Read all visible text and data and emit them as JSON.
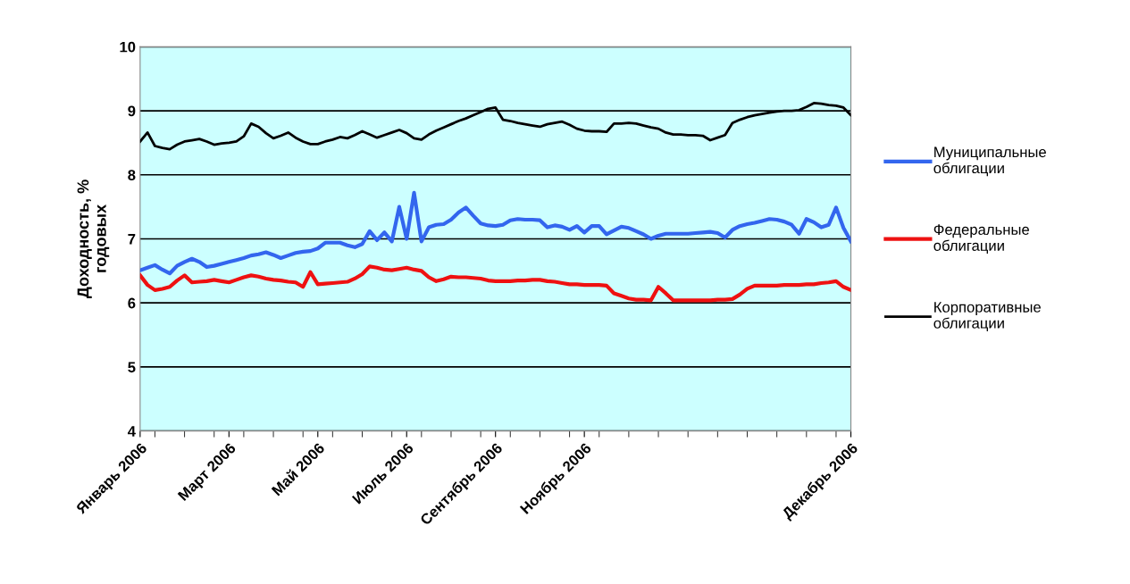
{
  "chart_data": {
    "type": "line",
    "ylabel": "Доходность, %\nгодовых",
    "ylim": [
      4,
      10
    ],
    "yticks": [
      4,
      5,
      6,
      7,
      8,
      9,
      10
    ],
    "categories": [
      "Январь 2006",
      null,
      null,
      null,
      null,
      null,
      null,
      null,
      null,
      null,
      null,
      null,
      "Март 2006",
      null,
      null,
      null,
      null,
      null,
      null,
      null,
      null,
      null,
      null,
      null,
      "Май 2006",
      null,
      null,
      null,
      null,
      null,
      null,
      null,
      null,
      null,
      null,
      null,
      "Июль 2006",
      null,
      null,
      null,
      null,
      null,
      null,
      null,
      null,
      null,
      null,
      null,
      "Сентябрь 2006",
      null,
      null,
      null,
      null,
      null,
      null,
      null,
      null,
      null,
      null,
      null,
      "Ноябрь 2006",
      null,
      null,
      null,
      null,
      null,
      null,
      null,
      null,
      null,
      null,
      null,
      null,
      null,
      null,
      null,
      null,
      null,
      null,
      null,
      null,
      null,
      null,
      null,
      null,
      null,
      null,
      null,
      null,
      null,
      null,
      null,
      null,
      null,
      null,
      null,
      "Декабрь 2006"
    ],
    "grid": "y",
    "legend": "right",
    "marker": "none",
    "line_style": "solid",
    "series": [
      {
        "name": "Муниципальные\nоблигации",
        "color": "#3366ee",
        "values": [
          6.51,
          6.55,
          6.59,
          6.52,
          6.46,
          6.58,
          6.64,
          6.69,
          6.64,
          6.56,
          6.58,
          6.61,
          6.64,
          6.67,
          6.7,
          6.74,
          6.76,
          6.79,
          6.75,
          6.7,
          6.74,
          6.78,
          6.8,
          6.81,
          6.85,
          6.94,
          6.94,
          6.94,
          6.9,
          6.87,
          6.92,
          7.12,
          6.98,
          7.1,
          6.96,
          7.5,
          7.0,
          7.72,
          6.96,
          7.18,
          7.22,
          7.23,
          7.3,
          7.41,
          7.49,
          7.36,
          7.24,
          7.21,
          7.2,
          7.22,
          7.29,
          7.31,
          7.3,
          7.3,
          7.29,
          7.18,
          7.21,
          7.19,
          7.14,
          7.2,
          7.1,
          7.2,
          7.2,
          7.07,
          7.13,
          7.19,
          7.17,
          7.12,
          7.07,
          7.0,
          7.05,
          7.08,
          7.08,
          7.08,
          7.08,
          7.09,
          7.1,
          7.11,
          7.09,
          7.02,
          7.14,
          7.2,
          7.23,
          7.25,
          7.28,
          7.31,
          7.3,
          7.27,
          7.22,
          7.08,
          7.31,
          7.26,
          7.18,
          7.22,
          7.49,
          7.17,
          6.96
        ]
      },
      {
        "name": "Федеральные\nоблигации",
        "color": "#ee1111",
        "values": [
          6.43,
          6.28,
          6.2,
          6.22,
          6.25,
          6.35,
          6.43,
          6.32,
          6.33,
          6.34,
          6.36,
          6.34,
          6.32,
          6.36,
          6.4,
          6.43,
          6.41,
          6.38,
          6.36,
          6.35,
          6.33,
          6.32,
          6.25,
          6.48,
          6.29,
          6.3,
          6.31,
          6.32,
          6.33,
          6.38,
          6.45,
          6.57,
          6.55,
          6.52,
          6.51,
          6.53,
          6.55,
          6.52,
          6.5,
          6.4,
          6.34,
          6.37,
          6.41,
          6.4,
          6.4,
          6.39,
          6.38,
          6.35,
          6.34,
          6.34,
          6.34,
          6.35,
          6.35,
          6.36,
          6.36,
          6.34,
          6.33,
          6.31,
          6.29,
          6.29,
          6.28,
          6.28,
          6.28,
          6.27,
          6.15,
          6.11,
          6.07,
          6.05,
          6.05,
          6.04,
          6.25,
          6.15,
          6.04,
          6.04,
          6.04,
          6.04,
          6.04,
          6.04,
          6.05,
          6.05,
          6.06,
          6.13,
          6.22,
          6.27,
          6.27,
          6.27,
          6.27,
          6.28,
          6.28,
          6.28,
          6.29,
          6.29,
          6.31,
          6.32,
          6.34,
          6.25,
          6.2
        ]
      },
      {
        "name": "Корпоративные\nоблигации",
        "color": "#000000",
        "values": [
          8.52,
          8.66,
          8.45,
          8.42,
          8.4,
          8.47,
          8.52,
          8.54,
          8.56,
          8.52,
          8.47,
          8.49,
          8.5,
          8.52,
          8.6,
          8.8,
          8.75,
          8.65,
          8.57,
          8.61,
          8.66,
          8.58,
          8.52,
          8.48,
          8.48,
          8.52,
          8.55,
          8.59,
          8.57,
          8.62,
          8.68,
          8.63,
          8.58,
          8.62,
          8.66,
          8.7,
          8.65,
          8.57,
          8.55,
          8.63,
          8.69,
          8.74,
          8.79,
          8.84,
          8.88,
          8.93,
          8.98,
          9.03,
          9.05,
          8.86,
          8.84,
          8.81,
          8.79,
          8.77,
          8.75,
          8.79,
          8.81,
          8.83,
          8.78,
          8.72,
          8.69,
          8.68,
          8.68,
          8.67,
          8.8,
          8.8,
          8.81,
          8.8,
          8.77,
          8.74,
          8.72,
          8.66,
          8.63,
          8.63,
          8.62,
          8.62,
          8.61,
          8.54,
          8.58,
          8.62,
          8.81,
          8.86,
          8.9,
          8.93,
          8.95,
          8.97,
          8.99,
          9.0,
          9.0,
          9.01,
          9.06,
          9.12,
          9.11,
          9.09,
          9.08,
          9.05,
          8.93
        ]
      }
    ]
  }
}
